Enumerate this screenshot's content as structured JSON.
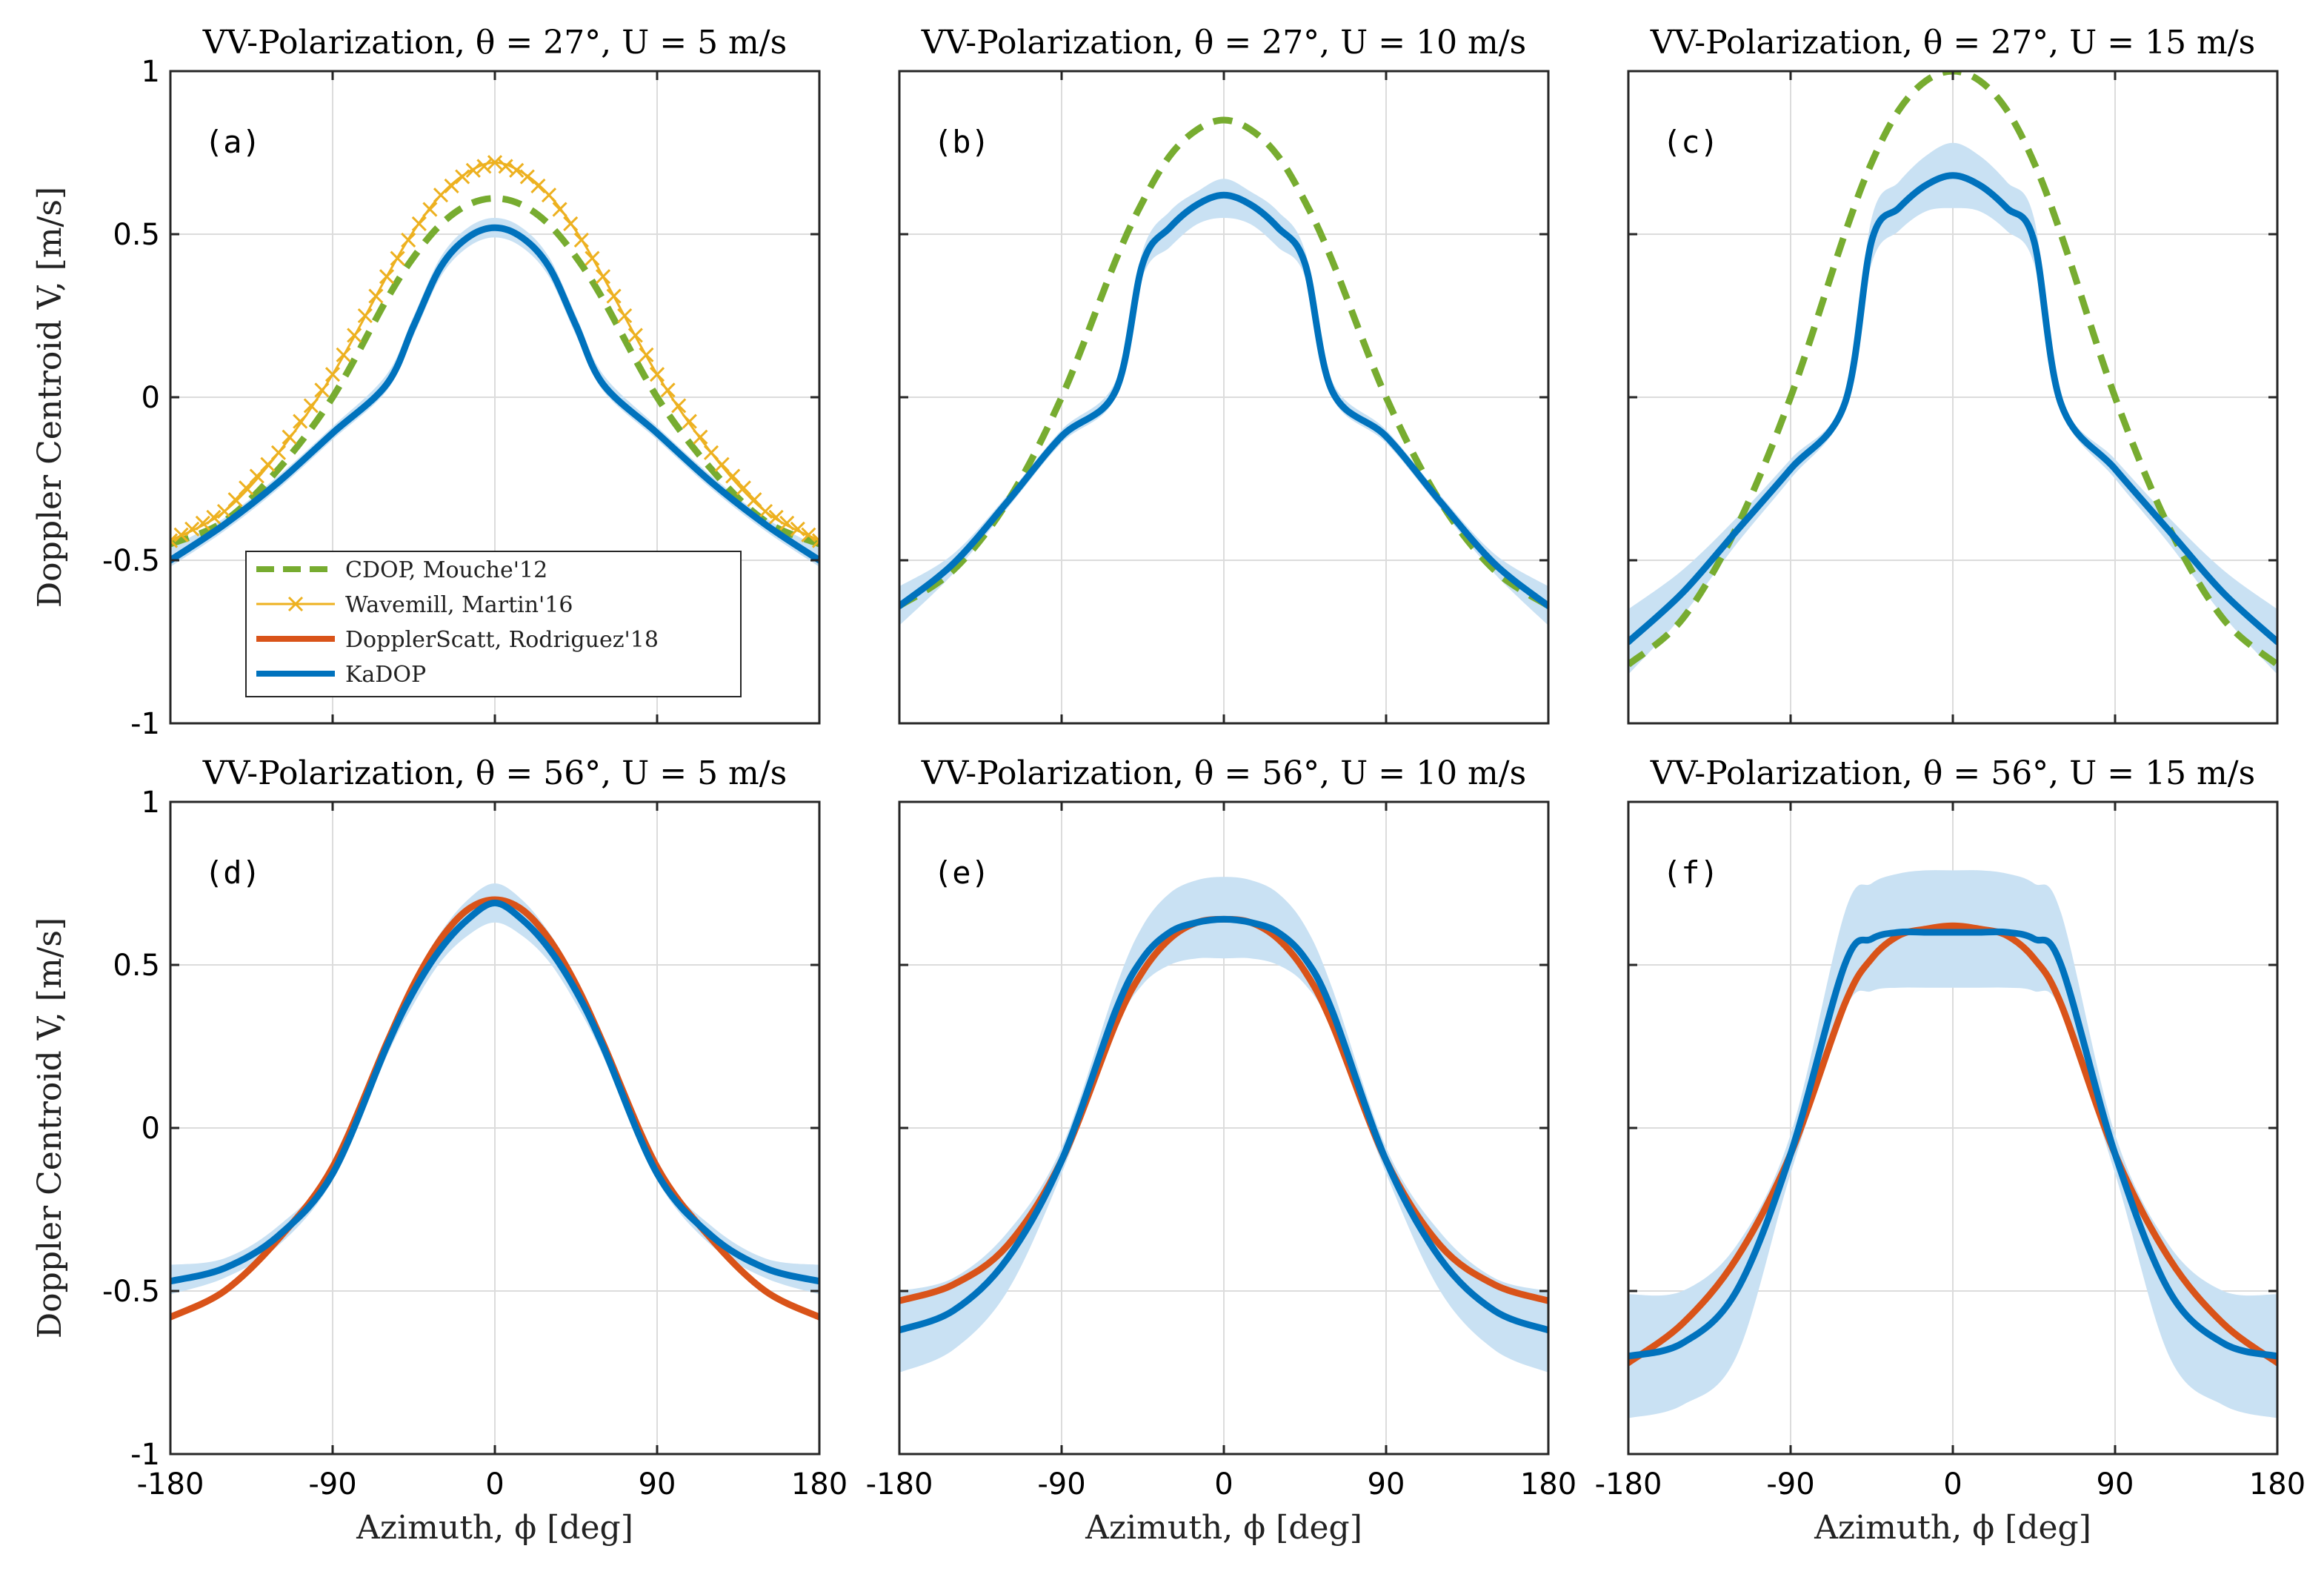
{
  "chart_data": {
    "type": "line",
    "x_axis": {
      "label": "Azimuth, ϕ [deg]",
      "range": [
        -180,
        180
      ],
      "ticks": [
        "-180",
        "-90",
        "0",
        "90",
        "180"
      ]
    },
    "y_axis": {
      "label": "Doppler Centroid V, [m/s]",
      "range": [
        -1,
        1
      ],
      "ticks": [
        "-1",
        "-0.5",
        "0",
        "0.5",
        "1"
      ]
    },
    "grid": true,
    "legend": {
      "placement": "lower-left of panel (a)",
      "entries": [
        {
          "key": "cdop",
          "label": "CDOP, Mouche'12"
        },
        {
          "key": "wavemill",
          "label": "Wavemill, Martin'16"
        },
        {
          "key": "dopplerscatt",
          "label": "DopplerScatt, Rodriguez'18"
        },
        {
          "key": "kadop",
          "label": "KaDOP"
        }
      ]
    },
    "colors": {
      "cdop": "#77ac30",
      "wavemill": "#edb120",
      "dopplerscatt": "#d95319",
      "kadop": "#0072bd",
      "kadop_band": "#c9e1f3"
    },
    "panels": [
      {
        "label": "(a)",
        "title": "VV-Polarization, θ = 27°, U = 5 m/s",
        "x": [
          -180,
          -150,
          -120,
          -90,
          -60,
          -45,
          -30,
          -15,
          0,
          15,
          30,
          45,
          60,
          90,
          120,
          150,
          180
        ],
        "series": [
          {
            "key": "cdop",
            "values": [
              -0.45,
              -0.38,
              -0.22,
              0.0,
              0.3,
              0.43,
              0.53,
              0.59,
              0.61,
              0.59,
              0.53,
              0.43,
              0.3,
              0.0,
              -0.22,
              -0.38,
              -0.45
            ]
          },
          {
            "key": "wavemill",
            "values": [
              -0.44,
              -0.35,
              -0.17,
              0.07,
              0.37,
              0.51,
              0.62,
              0.69,
              0.72,
              0.69,
              0.62,
              0.51,
              0.37,
              0.07,
              -0.17,
              -0.35,
              -0.44
            ]
          },
          {
            "key": "kadop",
            "values": [
              -0.5,
              -0.39,
              -0.26,
              -0.11,
              0.04,
              0.22,
              0.4,
              0.49,
              0.52,
              0.49,
              0.4,
              0.22,
              0.04,
              -0.11,
              -0.26,
              -0.39,
              -0.5
            ],
            "band_low": [
              -0.52,
              -0.41,
              -0.28,
              -0.13,
              0.02,
              0.19,
              0.37,
              0.46,
              0.49,
              0.46,
              0.37,
              0.19,
              0.02,
              -0.13,
              -0.28,
              -0.41,
              -0.52
            ],
            "band_high": [
              -0.46,
              -0.37,
              -0.24,
              -0.09,
              0.07,
              0.25,
              0.43,
              0.52,
              0.55,
              0.52,
              0.43,
              0.25,
              0.07,
              -0.09,
              -0.24,
              -0.37,
              -0.46
            ]
          }
        ]
      },
      {
        "label": "(b)",
        "title": "VV-Polarization, θ = 27°, U = 10 m/s",
        "x": [
          -180,
          -150,
          -120,
          -90,
          -60,
          -45,
          -30,
          -15,
          0,
          15,
          30,
          45,
          60,
          90,
          120,
          150,
          180
        ],
        "series": [
          {
            "key": "cdop",
            "values": [
              -0.64,
              -0.53,
              -0.32,
              0.0,
              0.42,
              0.6,
              0.74,
              0.82,
              0.85,
              0.82,
              0.74,
              0.6,
              0.42,
              0.0,
              -0.32,
              -0.53,
              -0.64
            ]
          },
          {
            "key": "kadop",
            "values": [
              -0.64,
              -0.51,
              -0.32,
              -0.12,
              0.02,
              0.41,
              0.52,
              0.59,
              0.62,
              0.59,
              0.52,
              0.41,
              0.02,
              -0.12,
              -0.32,
              -0.51,
              -0.64
            ],
            "band_low": [
              -0.7,
              -0.54,
              -0.34,
              -0.14,
              0.0,
              0.37,
              0.46,
              0.53,
              0.55,
              0.53,
              0.46,
              0.37,
              0.0,
              -0.14,
              -0.34,
              -0.54,
              -0.7
            ],
            "band_high": [
              -0.58,
              -0.48,
              -0.3,
              -0.1,
              0.05,
              0.45,
              0.57,
              0.63,
              0.67,
              0.63,
              0.57,
              0.45,
              0.05,
              -0.1,
              -0.3,
              -0.48,
              -0.58
            ]
          }
        ]
      },
      {
        "label": "(c)",
        "title": "VV-Polarization, θ = 27°, U = 15 m/s",
        "x": [
          -180,
          -150,
          -120,
          -90,
          -60,
          -45,
          -30,
          -15,
          0,
          15,
          30,
          45,
          60,
          90,
          120,
          150,
          180
        ],
        "series": [
          {
            "key": "cdop",
            "values": [
              -0.82,
              -0.68,
              -0.4,
              0.0,
              0.5,
              0.72,
              0.88,
              0.97,
              1.0,
              0.97,
              0.88,
              0.72,
              0.5,
              0.0,
              -0.4,
              -0.68,
              -0.82
            ]
          },
          {
            "key": "kadop",
            "values": [
              -0.75,
              -0.6,
              -0.41,
              -0.22,
              -0.02,
              0.48,
              0.58,
              0.65,
              0.68,
              0.65,
              0.58,
              0.48,
              -0.02,
              -0.22,
              -0.41,
              -0.6,
              -0.75
            ],
            "band_low": [
              -0.85,
              -0.67,
              -0.45,
              -0.25,
              -0.04,
              0.41,
              0.51,
              0.57,
              0.58,
              0.57,
              0.51,
              0.41,
              -0.04,
              -0.25,
              -0.45,
              -0.67,
              -0.85
            ],
            "band_high": [
              -0.65,
              -0.53,
              -0.37,
              -0.19,
              0.0,
              0.55,
              0.66,
              0.74,
              0.78,
              0.74,
              0.66,
              0.55,
              0.0,
              -0.19,
              -0.37,
              -0.53,
              -0.65
            ]
          }
        ]
      },
      {
        "label": "(d)",
        "title": "VV-Polarization, θ = 56°, U = 5 m/s",
        "x": [
          -180,
          -150,
          -120,
          -90,
          -60,
          -45,
          -30,
          -15,
          0,
          15,
          30,
          45,
          60,
          90,
          120,
          150,
          180
        ],
        "series": [
          {
            "key": "dopplerscatt",
            "values": [
              -0.58,
              -0.5,
              -0.34,
              -0.12,
              0.26,
              0.44,
              0.58,
              0.67,
              0.7,
              0.67,
              0.58,
              0.44,
              0.26,
              -0.12,
              -0.34,
              -0.5,
              -0.58
            ]
          },
          {
            "key": "kadop",
            "values": [
              -0.47,
              -0.43,
              -0.33,
              -0.14,
              0.25,
              0.42,
              0.55,
              0.64,
              0.69,
              0.64,
              0.55,
              0.42,
              0.25,
              -0.14,
              -0.33,
              -0.43,
              -0.47
            ],
            "band_low": [
              -0.51,
              -0.46,
              -0.36,
              -0.16,
              0.22,
              0.38,
              0.51,
              0.59,
              0.63,
              0.59,
              0.51,
              0.38,
              0.22,
              -0.16,
              -0.36,
              -0.46,
              -0.51
            ],
            "band_high": [
              -0.42,
              -0.4,
              -0.3,
              -0.12,
              0.28,
              0.46,
              0.6,
              0.7,
              0.75,
              0.7,
              0.6,
              0.46,
              0.28,
              -0.12,
              -0.3,
              -0.4,
              -0.42
            ]
          }
        ]
      },
      {
        "label": "(e)",
        "title": "VV-Polarization, θ = 56°, U = 10 m/s",
        "x": [
          -180,
          -150,
          -120,
          -90,
          -60,
          -45,
          -30,
          -15,
          0,
          15,
          30,
          45,
          60,
          90,
          120,
          150,
          180
        ],
        "series": [
          {
            "key": "dopplerscatt",
            "values": [
              -0.53,
              -0.48,
              -0.36,
              -0.1,
              0.32,
              0.48,
              0.58,
              0.63,
              0.64,
              0.63,
              0.58,
              0.48,
              0.32,
              -0.1,
              -0.36,
              -0.48,
              -0.53
            ]
          },
          {
            "key": "kadop",
            "values": [
              -0.62,
              -0.56,
              -0.4,
              -0.1,
              0.36,
              0.52,
              0.6,
              0.63,
              0.64,
              0.63,
              0.6,
              0.52,
              0.36,
              -0.1,
              -0.4,
              -0.56,
              -0.62
            ],
            "band_low": [
              -0.75,
              -0.68,
              -0.5,
              -0.14,
              0.3,
              0.44,
              0.5,
              0.52,
              0.52,
              0.52,
              0.5,
              0.44,
              0.3,
              -0.14,
              -0.5,
              -0.68,
              -0.75
            ],
            "band_high": [
              -0.5,
              -0.46,
              -0.32,
              -0.06,
              0.43,
              0.62,
              0.72,
              0.76,
              0.77,
              0.76,
              0.72,
              0.62,
              0.43,
              -0.06,
              -0.32,
              -0.46,
              -0.5
            ]
          }
        ]
      },
      {
        "label": "(f)",
        "title": "VV-Polarization, θ = 56°, U = 15 m/s",
        "x": [
          -180,
          -150,
          -120,
          -90,
          -60,
          -45,
          -30,
          -15,
          0,
          15,
          30,
          45,
          60,
          90,
          120,
          150,
          180
        ],
        "series": [
          {
            "key": "dopplerscatt",
            "values": [
              -0.72,
              -0.6,
              -0.4,
              -0.08,
              0.38,
              0.52,
              0.59,
              0.61,
              0.62,
              0.61,
              0.59,
              0.52,
              0.38,
              -0.08,
              -0.4,
              -0.6,
              -0.72
            ]
          },
          {
            "key": "kadop",
            "values": [
              -0.7,
              -0.66,
              -0.5,
              -0.08,
              0.5,
              0.58,
              0.6,
              0.6,
              0.6,
              0.6,
              0.6,
              0.58,
              0.5,
              -0.08,
              -0.5,
              -0.66,
              -0.7
            ],
            "band_low": [
              -0.89,
              -0.85,
              -0.7,
              -0.14,
              0.36,
              0.42,
              0.43,
              0.43,
              0.43,
              0.43,
              0.43,
              0.42,
              0.36,
              -0.14,
              -0.7,
              -0.85,
              -0.89
            ],
            "band_high": [
              -0.51,
              -0.5,
              -0.36,
              -0.02,
              0.66,
              0.75,
              0.78,
              0.79,
              0.79,
              0.79,
              0.78,
              0.75,
              0.66,
              -0.02,
              -0.36,
              -0.5,
              -0.51
            ]
          }
        ]
      }
    ]
  }
}
